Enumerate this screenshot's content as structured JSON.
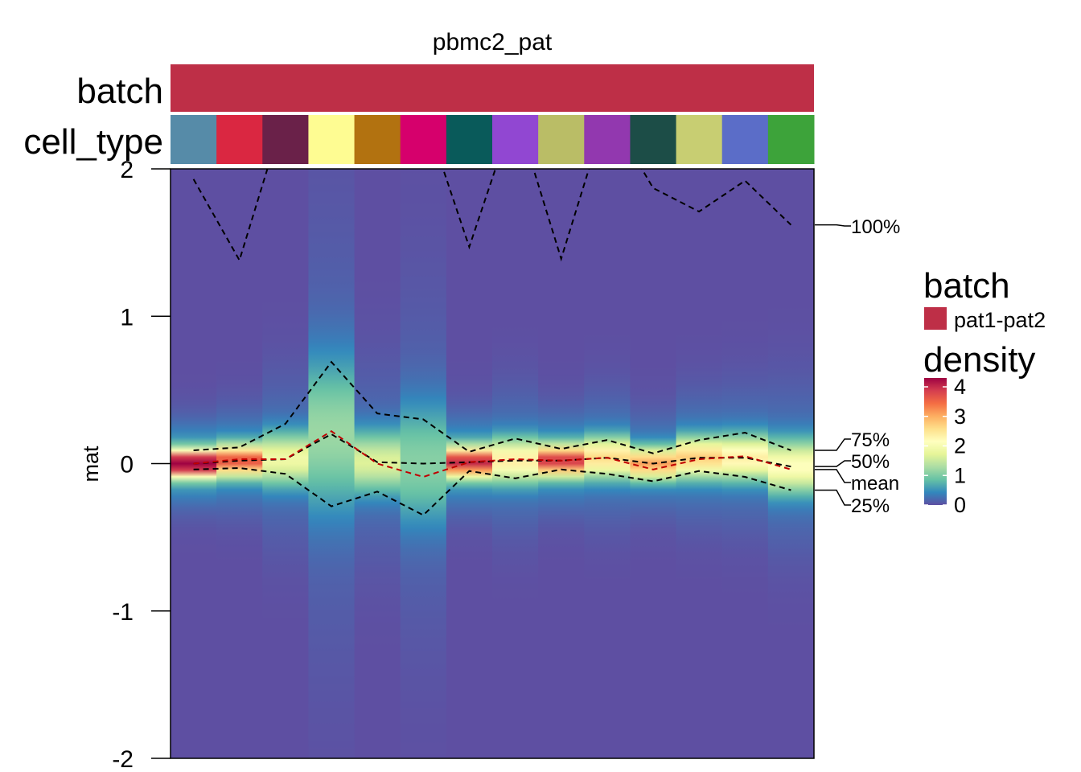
{
  "chart_data": {
    "type": "heatmap",
    "title": "pbmc2_pat",
    "ylabel": "mat",
    "ylim": [
      -2,
      2
    ],
    "yticks": [
      "2",
      "1",
      "0",
      "-1",
      "-2"
    ],
    "annotation_labels": {
      "batch": "batch",
      "cell_type": "cell_type"
    },
    "batch_color": "#BE2F47",
    "cell_type_colors": [
      "#568BA8",
      "#DA2741",
      "#6A2149",
      "#FEFC92",
      "#B27210",
      "#D6006C",
      "#095A5A",
      "#9147D2",
      "#BABD66",
      "#9238AF",
      "#1C4D47",
      "#C8CE72",
      "#5B6DC8",
      "#3DA33A"
    ],
    "columns": [
      {
        "max": 1.93,
        "q75": 0.09,
        "median": 0.0,
        "mean": 0.0,
        "q25": -0.04,
        "peak": 4.1,
        "spread": 0.06
      },
      {
        "max": 1.38,
        "q75": 0.11,
        "median": 0.02,
        "mean": 0.03,
        "q25": -0.03,
        "peak": 3.1,
        "spread": 0.07
      },
      {
        "max": 2.4,
        "q75": 0.27,
        "median": 0.03,
        "mean": 0.03,
        "q25": -0.07,
        "peak": 1.6,
        "spread": 0.12
      },
      {
        "max": 2.4,
        "q75": 0.69,
        "median": 0.2,
        "mean": 0.22,
        "q25": -0.29,
        "peak": 1.0,
        "spread": 0.35
      },
      {
        "max": 2.4,
        "q75": 0.34,
        "median": 0.01,
        "mean": 0.0,
        "q25": -0.19,
        "peak": 1.4,
        "spread": 0.14
      },
      {
        "max": 2.4,
        "q75": 0.3,
        "median": 0.0,
        "mean": -0.09,
        "q25": -0.35,
        "peak": 0.9,
        "spread": 0.28
      },
      {
        "max": 1.47,
        "q75": 0.08,
        "median": 0.01,
        "mean": 0.01,
        "q25": -0.05,
        "peak": 3.4,
        "spread": 0.07
      },
      {
        "max": 2.4,
        "q75": 0.17,
        "median": 0.02,
        "mean": 0.03,
        "q25": -0.1,
        "peak": 2.0,
        "spread": 0.1
      },
      {
        "max": 1.39,
        "q75": 0.1,
        "median": 0.02,
        "mean": 0.02,
        "q25": -0.04,
        "peak": 3.3,
        "spread": 0.07
      },
      {
        "max": 2.4,
        "q75": 0.16,
        "median": 0.04,
        "mean": 0.04,
        "q25": -0.07,
        "peak": 2.2,
        "spread": 0.09
      },
      {
        "max": 1.87,
        "q75": 0.07,
        "median": 0.0,
        "mean": -0.04,
        "q25": -0.12,
        "peak": 2.6,
        "spread": 0.07
      },
      {
        "max": 1.71,
        "q75": 0.16,
        "median": 0.04,
        "mean": 0.03,
        "q25": -0.05,
        "peak": 2.3,
        "spread": 0.09
      },
      {
        "max": 1.92,
        "q75": 0.21,
        "median": 0.04,
        "mean": 0.05,
        "q25": -0.09,
        "peak": 2.0,
        "spread": 0.1
      },
      {
        "max": 1.62,
        "q75": 0.09,
        "median": -0.02,
        "mean": -0.04,
        "q25": -0.18,
        "peak": 1.8,
        "spread": 0.12
      }
    ],
    "line_labels": [
      "100%",
      "75%",
      "50%",
      "mean",
      "25%"
    ],
    "legends": {
      "batch": {
        "title": "batch",
        "items": [
          {
            "label": "pat1-pat2",
            "color": "#BE2F47"
          }
        ]
      },
      "density": {
        "title": "density",
        "ticks": [
          "4",
          "3",
          "2",
          "1",
          "0"
        ],
        "colors": [
          "#5E4FA2",
          "#3288BD",
          "#66C2A5",
          "#ABDDA4",
          "#E6F598",
          "#FFFFBF",
          "#FEE08B",
          "#FDAE61",
          "#F46D43",
          "#D53E4F",
          "#9E0142"
        ]
      }
    },
    "mean_line_color": "#C00000",
    "grid": false
  }
}
